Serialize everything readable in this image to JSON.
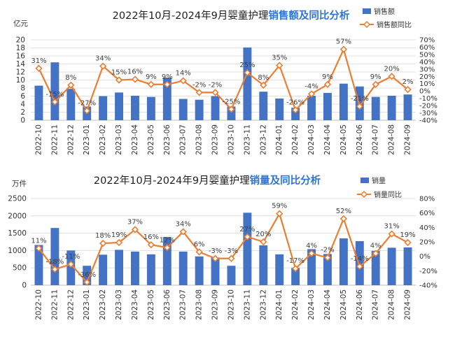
{
  "colors": {
    "bar": "#4472C4",
    "line": "#ED7D31",
    "marker_fill": "#ffffff",
    "title": "#1f1f1f",
    "title_accent": "#2E75D6",
    "grid": "#d9d9d9",
    "axis_text": "#333333",
    "label_text": "#404040"
  },
  "chart_data": [
    {
      "type": "bar",
      "title_prefix": "2022年10月-2024年9月婴童护理",
      "title_accent": "销售额及同比分析",
      "unit_label": "亿元",
      "categories": [
        "2022-10",
        "2022-11",
        "2022-12",
        "2023-01",
        "2023-02",
        "2023-03",
        "2023-04",
        "2023-05",
        "2023-06",
        "2023-07",
        "2023-08",
        "2023-09",
        "2023-10",
        "2023-11",
        "2023-12",
        "2024-01",
        "2024-02",
        "2024-03",
        "2024-04",
        "2024-05",
        "2024-06",
        "2024-07",
        "2024-08",
        "2024-09"
      ],
      "series": [
        {
          "name": "销售额",
          "kind": "bar",
          "axis": "left",
          "values": [
            8.6,
            14.4,
            7.8,
            3.4,
            6.0,
            6.9,
            6.1,
            5.8,
            10.6,
            5.3,
            5.1,
            6.0,
            3.4,
            18.1,
            7.1,
            5.4,
            3.1,
            6.1,
            6.8,
            9.1,
            8.4,
            5.8,
            6.1,
            6.4
          ]
        },
        {
          "name": "销售额同比",
          "kind": "line",
          "axis": "right",
          "values": [
            31,
            -15,
            8,
            -27,
            34,
            15,
            16,
            9,
            9,
            14,
            -2,
            -2,
            -25,
            25,
            8,
            35,
            -26,
            -4,
            9,
            57,
            -21,
            9,
            20,
            2
          ],
          "labels": [
            "31%",
            "-15%",
            "8%",
            "-27%",
            "34%",
            "15%",
            "16%",
            "9%",
            "9%",
            "14%",
            "-2%",
            "-2%",
            "-25%",
            "25%",
            "8%",
            "35%",
            "-26%",
            "-4%",
            "9%",
            "57%",
            "-21%",
            "9%",
            "20%",
            "2%"
          ]
        }
      ],
      "ylim_left": [
        0,
        20
      ],
      "yticks_left": [
        "0",
        "2",
        "4",
        "6",
        "8",
        "10",
        "12",
        "14",
        "16",
        "18",
        "20"
      ],
      "ylim_right": [
        -40,
        70
      ],
      "yticks_right": [
        "-40%",
        "-30%",
        "-20%",
        "-10%",
        "0%",
        "10%",
        "20%",
        "30%",
        "40%",
        "50%",
        "60%",
        "70%"
      ],
      "legend_position": "top-right",
      "grid": true
    },
    {
      "type": "bar",
      "title_prefix": "2022年10月-2024年9月婴童护理",
      "title_accent": "销量及同比分析",
      "unit_label": "万件",
      "categories": [
        "2022-10",
        "2022-11",
        "2022-12",
        "2023-01",
        "2023-02",
        "2023-03",
        "2023-04",
        "2023-05",
        "2023-06",
        "2023-07",
        "2023-08",
        "2023-09",
        "2023-10",
        "2023-11",
        "2023-12",
        "2024-01",
        "2024-02",
        "2024-03",
        "2024-04",
        "2024-05",
        "2024-06",
        "2024-07",
        "2024-08",
        "2024-09"
      ],
      "series": [
        {
          "name": "销量",
          "kind": "bar",
          "axis": "left",
          "values": [
            1160,
            1650,
            1000,
            560,
            880,
            1020,
            970,
            890,
            1390,
            970,
            830,
            800,
            560,
            2090,
            1150,
            890,
            500,
            1040,
            900,
            1350,
            1270,
            990,
            1080,
            1090
          ]
        },
        {
          "name": "销量同比",
          "kind": "line",
          "axis": "right",
          "values": [
            11,
            -18,
            -11,
            -36,
            18,
            19,
            37,
            16,
            12,
            34,
            6,
            -3,
            -3,
            27,
            20,
            59,
            -17,
            4,
            -2,
            52,
            -14,
            4,
            31,
            19
          ],
          "labels": [
            "11%",
            "-18%",
            "-11%",
            "-36%",
            "18%",
            "19%",
            "37%",
            "16%",
            "12%",
            "34%",
            "6%",
            "-3%",
            "-3%",
            "27%",
            "20%",
            "59%",
            "-17%",
            "4%",
            "-2%",
            "52%",
            "-14%",
            "4%",
            "31%",
            "19%"
          ]
        }
      ],
      "ylim_left": [
        0,
        2500
      ],
      "yticks_left": [
        "0",
        "500",
        "1000",
        "1500",
        "2000",
        "2500"
      ],
      "ylim_right": [
        -40,
        80
      ],
      "yticks_right": [
        "-40%",
        "-20%",
        "0%",
        "20%",
        "40%",
        "60%",
        "80%"
      ],
      "legend_position": "top-right",
      "grid": true
    }
  ]
}
